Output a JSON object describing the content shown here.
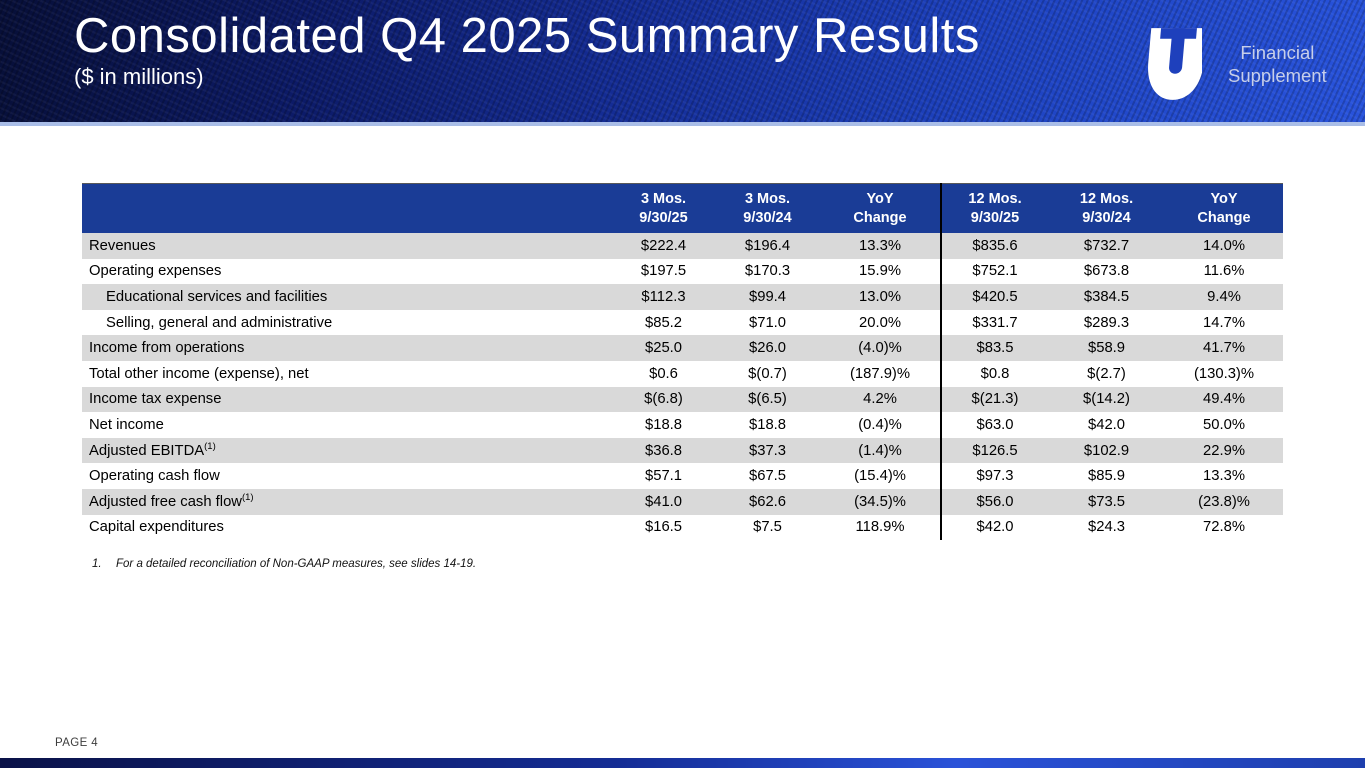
{
  "slide": {
    "title": "Consolidated Q4 2025 Summary Results",
    "subtitle": "($ in millions)",
    "brand": {
      "line1": "Financial",
      "line2": "Supplement",
      "logo_icon": "uti-u-t-emblem"
    },
    "footnote": {
      "number": "1.",
      "text": "For a detailed reconciliation of Non-GAAP measures, see slides 14-19."
    },
    "page_label": "PAGE 4"
  },
  "table": {
    "columns": [
      {
        "top": "3 Mos.",
        "bottom": "9/30/25"
      },
      {
        "top": "3 Mos.",
        "bottom": "9/30/24"
      },
      {
        "top": "YoY",
        "bottom": "Change"
      },
      {
        "top": "12 Mos.",
        "bottom": "9/30/25"
      },
      {
        "top": "12 Mos.",
        "bottom": "9/30/24"
      },
      {
        "top": "YoY",
        "bottom": "Change"
      }
    ],
    "rows": [
      {
        "label": "Revenues",
        "indent": false,
        "values": [
          "$222.4",
          "$196.4",
          "13.3%",
          "$835.6",
          "$732.7",
          "14.0%"
        ]
      },
      {
        "label": "Operating expenses",
        "indent": false,
        "values": [
          "$197.5",
          "$170.3",
          "15.9%",
          "$752.1",
          "$673.8",
          "11.6%"
        ]
      },
      {
        "label": "Educational services and facilities",
        "indent": true,
        "values": [
          "$112.3",
          "$99.4",
          "13.0%",
          "$420.5",
          "$384.5",
          "9.4%"
        ]
      },
      {
        "label": "Selling, general and administrative",
        "indent": true,
        "values": [
          "$85.2",
          "$71.0",
          "20.0%",
          "$331.7",
          "$289.3",
          "14.7%"
        ]
      },
      {
        "label": "Income from operations",
        "indent": false,
        "values": [
          "$25.0",
          "$26.0",
          "(4.0)%",
          "$83.5",
          "$58.9",
          "41.7%"
        ]
      },
      {
        "label": "Total other income (expense), net",
        "indent": false,
        "values": [
          "$0.6",
          "$(0.7)",
          "(187.9)%",
          "$0.8",
          "$(2.7)",
          "(130.3)%"
        ]
      },
      {
        "label": "Income tax expense",
        "indent": false,
        "values": [
          "$(6.8)",
          "$(6.5)",
          "4.2%",
          "$(21.3)",
          "$(14.2)",
          "49.4%"
        ]
      },
      {
        "label": "Net income",
        "indent": false,
        "values": [
          "$18.8",
          "$18.8",
          "(0.4)%",
          "$63.0",
          "$42.0",
          "50.0%"
        ]
      },
      {
        "label": "Adjusted EBITDA",
        "sup": "(1)",
        "indent": false,
        "values": [
          "$36.8",
          "$37.3",
          "(1.4)%",
          "$126.5",
          "$102.9",
          "22.9%"
        ]
      },
      {
        "label": "Operating cash flow",
        "indent": false,
        "values": [
          "$57.1",
          "$67.5",
          "(15.4)%",
          "$97.3",
          "$85.9",
          "13.3%"
        ]
      },
      {
        "label": "Adjusted free cash flow",
        "sup": "(1)",
        "indent": false,
        "values": [
          "$41.0",
          "$62.6",
          "(34.5)%",
          "$56.0",
          "$73.5",
          "(23.8)%"
        ]
      },
      {
        "label": "Capital expenditures",
        "indent": false,
        "values": [
          "$16.5",
          "$7.5",
          "118.9%",
          "$42.0",
          "$24.3",
          "72.8%"
        ]
      }
    ]
  },
  "colors": {
    "table_header_blue": "#1a3c96",
    "row_stripe_gray": "#d9d9d9",
    "banner_dark": "#070f38",
    "banner_mid": "#142c94",
    "banner_bright": "#2853dc",
    "banner_underline": "#a9bde7",
    "brand_text": "#c7cfe9"
  }
}
